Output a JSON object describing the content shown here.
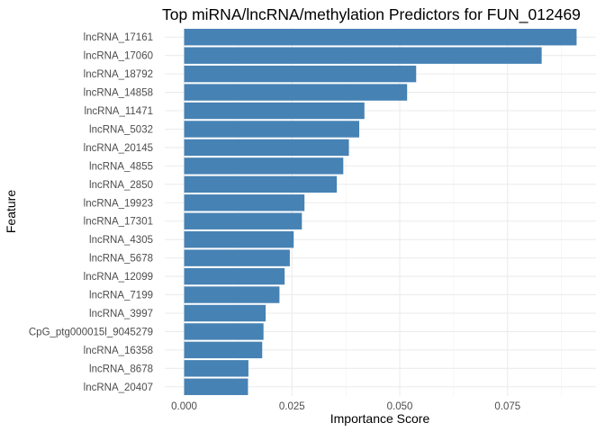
{
  "chart_data": {
    "type": "bar",
    "orientation": "horizontal",
    "title": "Top miRNA/lncRNA/methylation Predictors for FUN_012469",
    "xlabel": "Importance Score",
    "ylabel": "Feature",
    "xlim": [
      -0.0045,
      0.0955
    ],
    "x_ticks": [
      0.0,
      0.025,
      0.05,
      0.075
    ],
    "x_tick_labels": [
      "0.000",
      "0.025",
      "0.050",
      "0.075"
    ],
    "grid": true,
    "bar_color": "#4682B4",
    "categories": [
      "lncRNA_17161",
      "lncRNA_17060",
      "lncRNA_18792",
      "lncRNA_14858",
      "lncRNA_11471",
      "lncRNA_5032",
      "lncRNA_20145",
      "lncRNA_4855",
      "lncRNA_2850",
      "lncRNA_19923",
      "lncRNA_17301",
      "lncRNA_4305",
      "lncRNA_5678",
      "lncRNA_12099",
      "lncRNA_7199",
      "lncRNA_3997",
      "CpG_ptg000015l_9045279",
      "lncRNA_16358",
      "lncRNA_8678",
      "lncRNA_20407"
    ],
    "values": [
      0.091,
      0.0829,
      0.0538,
      0.0517,
      0.0418,
      0.0406,
      0.0382,
      0.0369,
      0.0354,
      0.0279,
      0.0273,
      0.0254,
      0.0245,
      0.0233,
      0.0221,
      0.0189,
      0.0184,
      0.0181,
      0.0149,
      0.0148
    ]
  }
}
